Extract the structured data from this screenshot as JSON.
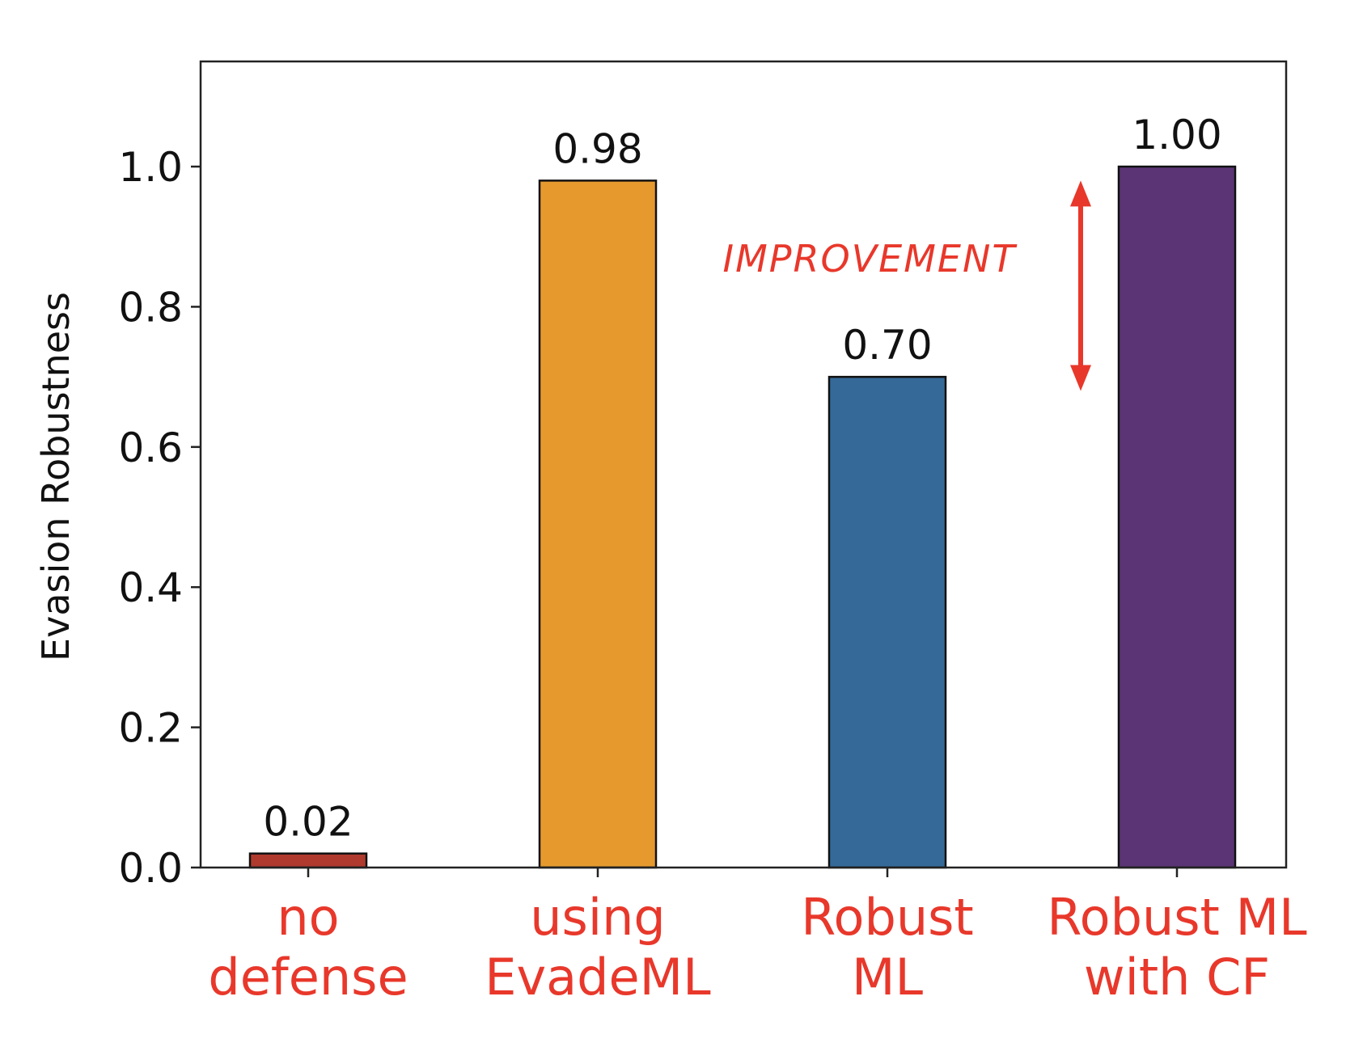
{
  "chart_data": {
    "type": "bar",
    "categories": [
      [
        "no",
        "defense"
      ],
      [
        "using",
        "EvadeML"
      ],
      [
        "Robust",
        "ML"
      ],
      [
        "Robust ML",
        "with CF"
      ]
    ],
    "values": [
      0.02,
      0.98,
      0.7,
      1.0
    ],
    "value_labels": [
      "0.02",
      "0.98",
      "0.70",
      "1.00"
    ],
    "colors": [
      "#B03A2E",
      "#E69A2E",
      "#356A98",
      "#5B3475"
    ],
    "title": "",
    "xlabel": "",
    "ylabel": "Evasion Robustness",
    "ylim": [
      0,
      1.15
    ],
    "yticks": [
      0.0,
      0.2,
      0.4,
      0.6,
      0.8,
      1.0
    ],
    "ytick_labels": [
      "0.0",
      "0.2",
      "0.4",
      "0.6",
      "0.8",
      "1.0"
    ],
    "category_label_color": "#E8382B",
    "annotation": {
      "text": "IMPROVEMENT",
      "color": "#E8382B",
      "arrow_from": 0.98,
      "arrow_to": 0.68
    },
    "grid": false
  }
}
